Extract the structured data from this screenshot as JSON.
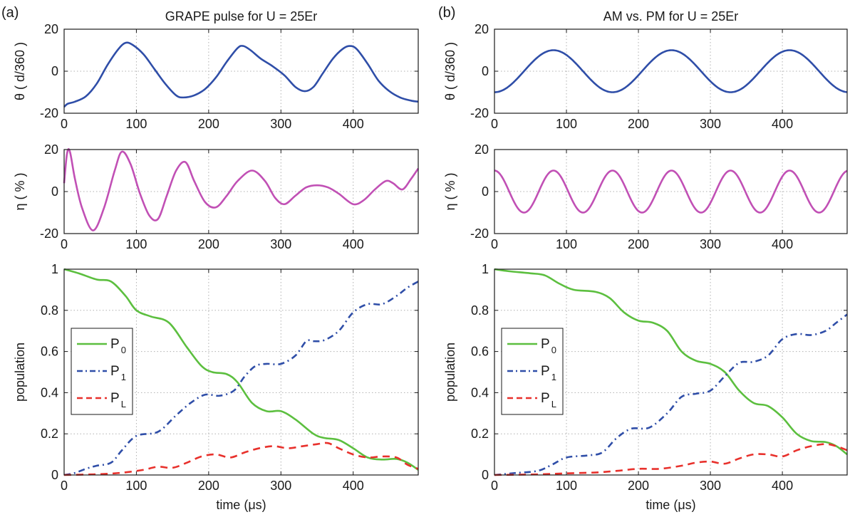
{
  "panel_labels": [
    "(a)",
    "(b)"
  ],
  "chart_data": [
    {
      "panel": "(a)",
      "type": "line",
      "title": "GRAPE pulse for U = 25Er",
      "xlabel": "",
      "ylabel": "θ ( d/360 )",
      "xlim": [
        0,
        490
      ],
      "ylim": [
        -20,
        20
      ],
      "xticks": [
        "0",
        "100",
        "200",
        "300",
        "400"
      ],
      "yticks": [
        "-20",
        "0",
        "20"
      ],
      "grid": true,
      "series": [
        {
          "color": "#2f4ea8",
          "style": "solid",
          "x": [
            0,
            5,
            15,
            30,
            45,
            60,
            75,
            85,
            95,
            110,
            125,
            140,
            155,
            165,
            180,
            195,
            210,
            225,
            240,
            248,
            258,
            272,
            288,
            305,
            320,
            333,
            345,
            358,
            372,
            385,
            395,
            405,
            420,
            435,
            450,
            465,
            480,
            490
          ],
          "y": [
            -17,
            -15.5,
            -14.5,
            -12,
            -6,
            3,
            10.5,
            13.5,
            12.5,
            8,
            1,
            -6,
            -11.5,
            -12.5,
            -11.5,
            -8.5,
            -3,
            4.5,
            11,
            12,
            10,
            6,
            2.5,
            -2,
            -7.5,
            -9.5,
            -7.5,
            -1,
            6,
            10.5,
            12,
            10.5,
            3.5,
            -4.5,
            -9.5,
            -12.5,
            -14,
            -14.5
          ]
        }
      ]
    },
    {
      "panel": "(a)",
      "type": "line",
      "xlabel": "",
      "ylabel": "η ( % )",
      "xlim": [
        0,
        490
      ],
      "ylim": [
        -20,
        20
      ],
      "xticks": [
        "0",
        "100",
        "200",
        "300",
        "400"
      ],
      "yticks": [
        "-20",
        "0",
        "20"
      ],
      "grid": true,
      "series": [
        {
          "color": "#c150b5",
          "style": "solid",
          "x": [
            0,
            4,
            8,
            15,
            25,
            40,
            55,
            70,
            80,
            92,
            105,
            118,
            130,
            142,
            155,
            168,
            180,
            195,
            210,
            225,
            240,
            260,
            278,
            292,
            305,
            320,
            335,
            350,
            365,
            380,
            400,
            415,
            430,
            445,
            455,
            468,
            480,
            490
          ],
          "y": [
            4,
            18,
            19,
            6,
            -8,
            -18.5,
            -8,
            10,
            19,
            13,
            -1,
            -11.5,
            -13,
            -2,
            10,
            14,
            5,
            -5,
            -7.5,
            -2,
            5,
            10,
            5,
            -3,
            -6,
            -2,
            2,
            3,
            2,
            -1,
            -6,
            -4,
            1,
            5,
            4,
            1,
            6,
            11
          ]
        }
      ]
    },
    {
      "panel": "(a)",
      "type": "line",
      "xlabel": "time (μs)",
      "ylabel": "population",
      "xlim": [
        0,
        490
      ],
      "ylim": [
        0,
        1
      ],
      "xticks": [
        "0",
        "100",
        "200",
        "300",
        "400"
      ],
      "yticks": [
        "0",
        "0.2",
        "0.4",
        "0.6",
        "0.8",
        "1"
      ],
      "grid": true,
      "legend": "middle-left",
      "series": [
        {
          "name_main": "P",
          "name_sub": "0",
          "color": "#5cbf3f",
          "style": "solid",
          "x": [
            0,
            20,
            45,
            65,
            85,
            100,
            120,
            145,
            170,
            190,
            205,
            225,
            240,
            260,
            280,
            300,
            320,
            345,
            360,
            380,
            400,
            420,
            440,
            460,
            475,
            490
          ],
          "y": [
            1,
            0.98,
            0.95,
            0.94,
            0.87,
            0.8,
            0.77,
            0.74,
            0.62,
            0.53,
            0.5,
            0.49,
            0.45,
            0.35,
            0.31,
            0.31,
            0.27,
            0.2,
            0.18,
            0.17,
            0.13,
            0.085,
            0.075,
            0.078,
            0.06,
            0.025
          ]
        },
        {
          "name_main": "P",
          "name_sub": "1",
          "color": "#2f4ea8",
          "style": "dashdot",
          "x": [
            0,
            15,
            30,
            45,
            65,
            80,
            100,
            130,
            155,
            175,
            195,
            215,
            235,
            250,
            265,
            280,
            300,
            320,
            335,
            345,
            360,
            380,
            400,
            420,
            440,
            460,
            475,
            490
          ],
          "y": [
            0,
            0.01,
            0.03,
            0.045,
            0.06,
            0.12,
            0.19,
            0.21,
            0.29,
            0.35,
            0.39,
            0.385,
            0.41,
            0.48,
            0.53,
            0.54,
            0.54,
            0.58,
            0.65,
            0.65,
            0.655,
            0.7,
            0.79,
            0.83,
            0.83,
            0.87,
            0.91,
            0.94
          ]
        },
        {
          "name_main": "P",
          "name_sub": "L",
          "color": "#e8312c",
          "style": "dashed",
          "x": [
            0,
            40,
            70,
            90,
            110,
            130,
            150,
            170,
            190,
            210,
            230,
            250,
            270,
            290,
            310,
            330,
            350,
            365,
            380,
            400,
            420,
            440,
            460,
            475,
            490
          ],
          "y": [
            0,
            0.003,
            0.008,
            0.015,
            0.025,
            0.04,
            0.035,
            0.06,
            0.09,
            0.1,
            0.085,
            0.11,
            0.13,
            0.14,
            0.13,
            0.14,
            0.15,
            0.155,
            0.13,
            0.1,
            0.085,
            0.09,
            0.085,
            0.05,
            0.03
          ]
        }
      ]
    },
    {
      "panel": "(b)",
      "type": "line",
      "title": "AM vs. PM for U = 25Er",
      "xlabel": "",
      "ylabel": "θ ( d/360 )",
      "xlim": [
        0,
        490
      ],
      "ylim": [
        -20,
        20
      ],
      "xticks": [
        "0",
        "100",
        "200",
        "300",
        "400"
      ],
      "yticks": [
        "-20",
        "0",
        "20"
      ],
      "grid": true,
      "series": [
        {
          "color": "#2f4ea8",
          "style": "solid",
          "function": {
            "kind": "sine",
            "amplitude": 10,
            "period": 164,
            "phase_deg": -90,
            "offset": 0,
            "x_start": 0,
            "x_end": 490
          }
        }
      ]
    },
    {
      "panel": "(b)",
      "type": "line",
      "xlabel": "",
      "ylabel": "η ( % )",
      "xlim": [
        0,
        490
      ],
      "ylim": [
        -20,
        20
      ],
      "xticks": [
        "0",
        "100",
        "200",
        "300",
        "400"
      ],
      "yticks": [
        "-20",
        "0",
        "20"
      ],
      "grid": true,
      "series": [
        {
          "color": "#c150b5",
          "style": "solid",
          "function": {
            "kind": "sine",
            "amplitude": 10,
            "period": 82,
            "phase_deg": 90,
            "offset": 0,
            "x_start": 0,
            "x_end": 490
          }
        }
      ]
    },
    {
      "panel": "(b)",
      "type": "line",
      "xlabel": "time (μs)",
      "ylabel": "population",
      "xlim": [
        0,
        490
      ],
      "ylim": [
        0,
        1
      ],
      "xticks": [
        "0",
        "100",
        "200",
        "300",
        "400"
      ],
      "yticks": [
        "0",
        "0.2",
        "0.4",
        "0.6",
        "0.8",
        "1"
      ],
      "grid": true,
      "legend": "middle-left",
      "series": [
        {
          "name_main": "P",
          "name_sub": "0",
          "color": "#5cbf3f",
          "style": "solid",
          "x": [
            0,
            20,
            50,
            70,
            90,
            110,
            140,
            160,
            180,
            200,
            220,
            240,
            260,
            280,
            300,
            320,
            340,
            360,
            380,
            400,
            420,
            440,
            460,
            475,
            490
          ],
          "y": [
            1,
            0.99,
            0.98,
            0.97,
            0.93,
            0.9,
            0.89,
            0.86,
            0.79,
            0.75,
            0.74,
            0.7,
            0.6,
            0.555,
            0.54,
            0.5,
            0.41,
            0.35,
            0.335,
            0.28,
            0.2,
            0.165,
            0.16,
            0.14,
            0.1
          ]
        },
        {
          "name_main": "P",
          "name_sub": "1",
          "color": "#2f4ea8",
          "style": "dashdot",
          "x": [
            0,
            30,
            60,
            80,
            100,
            130,
            150,
            170,
            190,
            215,
            240,
            260,
            280,
            300,
            320,
            340,
            360,
            380,
            400,
            420,
            440,
            460,
            475,
            490
          ],
          "y": [
            0,
            0.01,
            0.02,
            0.05,
            0.085,
            0.095,
            0.11,
            0.18,
            0.225,
            0.23,
            0.3,
            0.38,
            0.395,
            0.41,
            0.48,
            0.545,
            0.55,
            0.58,
            0.66,
            0.685,
            0.68,
            0.7,
            0.74,
            0.78
          ]
        },
        {
          "name_main": "P",
          "name_sub": "L",
          "color": "#e8312c",
          "style": "dashed",
          "x": [
            0,
            60,
            100,
            140,
            170,
            200,
            230,
            260,
            280,
            300,
            320,
            340,
            360,
            380,
            400,
            420,
            440,
            460,
            475,
            490
          ],
          "y": [
            0,
            0.003,
            0.008,
            0.012,
            0.02,
            0.03,
            0.03,
            0.045,
            0.06,
            0.065,
            0.055,
            0.08,
            0.1,
            0.1,
            0.09,
            0.12,
            0.14,
            0.15,
            0.14,
            0.12
          ]
        }
      ]
    }
  ]
}
